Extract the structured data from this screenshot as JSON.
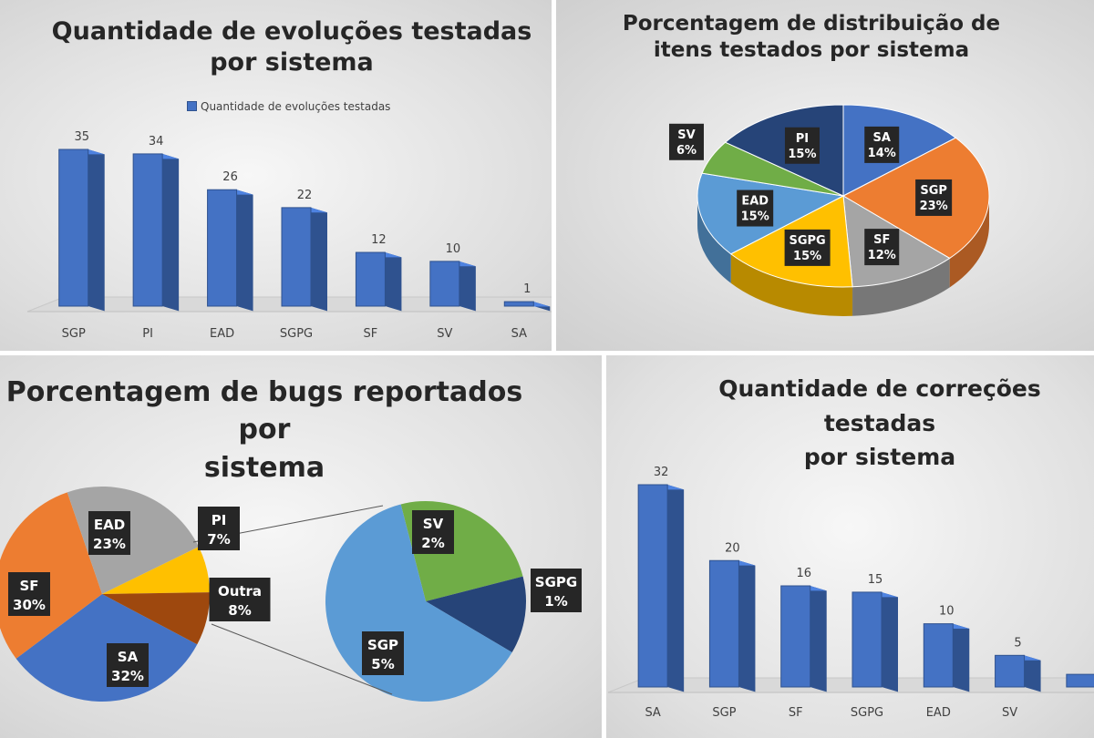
{
  "chart_data": [
    {
      "type": "bar",
      "title": "Quantidade de evoluções testadas por sistema",
      "title_lines": [
        "Quantidade de evoluções testadas",
        "por sistema"
      ],
      "legend": "Quantidade de evoluções testadas",
      "series": [
        {
          "name": "Quantidade de evoluções testadas",
          "values": [
            35,
            34,
            26,
            22,
            12,
            10,
            1
          ]
        }
      ],
      "categories": [
        "SGP",
        "PI",
        "EAD",
        "SGPG",
        "SF",
        "SV",
        "SA"
      ],
      "data_labels": [
        "35",
        "34",
        "26",
        "22",
        "12",
        "10",
        "1"
      ],
      "ylim": [
        0,
        35
      ],
      "colors": {
        "bar": "#4472c4",
        "bar_side": "#2f528f"
      }
    },
    {
      "type": "pie",
      "title": "Porcentagem de distribuição de itens testados por sistema",
      "title_lines": [
        "Porcentagem de distribuição de",
        "itens testados por sistema"
      ],
      "slices": [
        {
          "label": "SA",
          "pct_text": "14%",
          "value": 14,
          "color": "#4472c4"
        },
        {
          "label": "SGP",
          "pct_text": "23%",
          "value": 23,
          "color": "#ed7d31"
        },
        {
          "label": "SF",
          "pct_text": "12%",
          "value": 12,
          "color": "#a5a5a5"
        },
        {
          "label": "SGPG",
          "pct_text": "15%",
          "value": 15,
          "color": "#ffc000"
        },
        {
          "label": "EAD",
          "pct_text": "15%",
          "value": 15,
          "color": "#5b9bd5"
        },
        {
          "label": "SV",
          "pct_text": "6%",
          "value": 6,
          "color": "#70ad47"
        },
        {
          "label": "PI",
          "pct_text": "15%",
          "value": 15,
          "color": "#264478"
        }
      ]
    },
    {
      "type": "pie",
      "title": "Porcentagem de bugs reportados por sistema",
      "title_lines": [
        "Porcentagem de bugs reportados por",
        "sistema"
      ],
      "slices": [
        {
          "label": "SA",
          "pct_text": "32%",
          "value": 32,
          "color": "#4472c4"
        },
        {
          "label": "SF",
          "pct_text": "30%",
          "value": 30,
          "color": "#ed7d31"
        },
        {
          "label": "EAD",
          "pct_text": "23%",
          "value": 23,
          "color": "#a5a5a5"
        },
        {
          "label": "PI",
          "pct_text": "7%",
          "value": 7,
          "color": "#ffc000"
        },
        {
          "label": "Outra",
          "pct_text": "8%",
          "value": 8,
          "color": "#9e480e"
        }
      ],
      "secondary_slices": [
        {
          "label": "SV",
          "pct_text": "2%",
          "value": 2,
          "color": "#70ad47"
        },
        {
          "label": "SGPG",
          "pct_text": "1%",
          "value": 1,
          "color": "#264478"
        },
        {
          "label": "SGP",
          "pct_text": "5%",
          "value": 5,
          "color": "#5b9bd5"
        }
      ]
    },
    {
      "type": "bar",
      "title": "Quantidade de correções testadas por sistema",
      "title_lines": [
        "Quantidade de correções testadas",
        "por sistema"
      ],
      "series": [
        {
          "values": [
            32,
            20,
            16,
            15,
            10,
            5,
            2
          ]
        }
      ],
      "categories": [
        "SA",
        "SGP",
        "SF",
        "SGPG",
        "EAD",
        "SV",
        ""
      ],
      "data_labels": [
        "32",
        "20",
        "16",
        "15",
        "10",
        "5",
        ""
      ],
      "ylim": [
        0,
        32
      ],
      "colors": {
        "bar": "#4472c4",
        "bar_side": "#2f528f"
      }
    }
  ]
}
